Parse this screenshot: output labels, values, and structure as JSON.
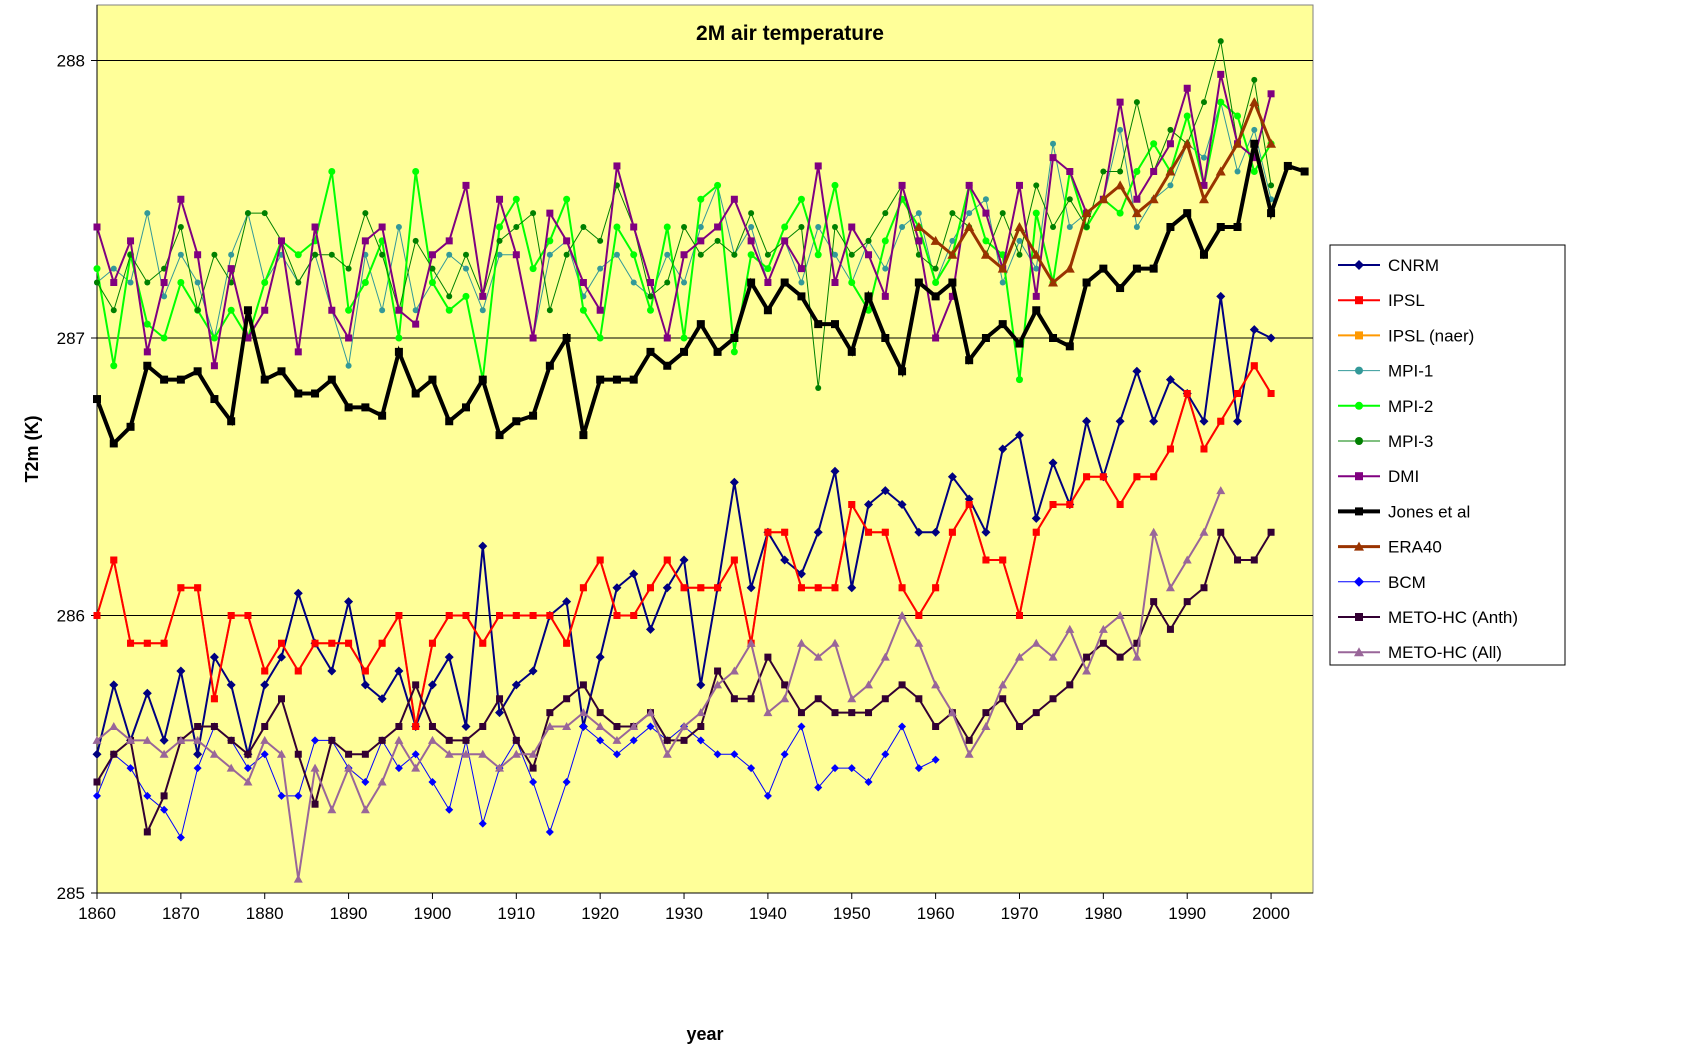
{
  "chart_data": {
    "type": "line",
    "title": "2M air temperature",
    "x_label": "year",
    "y_label": "T2m (K)",
    "xlim": [
      1860,
      2005
    ],
    "ylim": [
      285,
      288.2
    ],
    "xticks": [
      1860,
      1870,
      1880,
      1890,
      1900,
      1910,
      1920,
      1930,
      1940,
      1950,
      1960,
      1970,
      1980,
      1990,
      2000
    ],
    "yticks": [
      285,
      286,
      287,
      288
    ],
    "grid": true,
    "legend": "right",
    "background": "#ffff99",
    "x": [
      1860,
      1862,
      1864,
      1866,
      1868,
      1870,
      1872,
      1874,
      1876,
      1878,
      1880,
      1882,
      1884,
      1886,
      1888,
      1890,
      1892,
      1894,
      1896,
      1898,
      1900,
      1902,
      1904,
      1906,
      1908,
      1910,
      1912,
      1914,
      1916,
      1918,
      1920,
      1922,
      1924,
      1926,
      1928,
      1930,
      1932,
      1934,
      1936,
      1938,
      1940,
      1942,
      1944,
      1946,
      1948,
      1950,
      1952,
      1954,
      1956,
      1958,
      1960,
      1962,
      1964,
      1966,
      1968,
      1970,
      1972,
      1974,
      1976,
      1978,
      1980,
      1982,
      1984,
      1986,
      1988,
      1990,
      1992,
      1994,
      1996,
      1998,
      2000,
      2002,
      2004
    ],
    "series": [
      {
        "name": "CNRM",
        "color": "#000080",
        "marker": "diamond",
        "width": 2,
        "values": [
          285.5,
          285.75,
          285.55,
          285.72,
          285.55,
          285.8,
          285.5,
          285.85,
          285.75,
          285.5,
          285.75,
          285.85,
          286.08,
          285.9,
          285.8,
          286.05,
          285.75,
          285.7,
          285.8,
          285.6,
          285.75,
          285.85,
          285.6,
          286.25,
          285.65,
          285.75,
          285.8,
          286.0,
          286.05,
          285.6,
          285.85,
          286.1,
          286.15,
          285.95,
          286.1,
          286.2,
          285.75,
          286.1,
          286.48,
          286.1,
          286.3,
          286.2,
          286.15,
          286.3,
          286.52,
          286.1,
          286.4,
          286.45,
          286.4,
          286.3,
          286.3,
          286.5,
          286.42,
          286.3,
          286.6,
          286.65,
          286.35,
          286.55,
          286.4,
          286.7,
          286.5,
          286.7,
          286.88,
          286.7,
          286.85,
          286.8,
          286.7,
          287.15,
          286.7,
          287.03,
          287.0,
          null,
          null
        ]
      },
      {
        "name": "IPSL",
        "color": "#ff0000",
        "marker": "square",
        "width": 2,
        "values": [
          286.0,
          286.2,
          285.9,
          285.9,
          285.9,
          286.1,
          286.1,
          285.7,
          286.0,
          286.0,
          285.8,
          285.9,
          285.8,
          285.9,
          285.9,
          285.9,
          285.8,
          285.9,
          286.0,
          285.6,
          285.9,
          286.0,
          286.0,
          285.9,
          286.0,
          286.0,
          286.0,
          286.0,
          285.9,
          286.1,
          286.2,
          286.0,
          286.0,
          286.1,
          286.2,
          286.1,
          286.1,
          286.1,
          286.2,
          285.9,
          286.3,
          286.3,
          286.1,
          286.1,
          286.1,
          286.4,
          286.3,
          286.3,
          286.1,
          286.0,
          286.1,
          286.3,
          286.4,
          286.2,
          286.2,
          286.0,
          286.3,
          286.4,
          286.4,
          286.5,
          286.5,
          286.4,
          286.5,
          286.5,
          286.6,
          286.8,
          286.6,
          286.7,
          286.8,
          286.9,
          286.8,
          null,
          null
        ]
      },
      {
        "name": "IPSL (naer)",
        "color": "#ff9900",
        "marker": "square",
        "width": 2,
        "values": [
          286.0,
          286.2,
          285.9,
          285.9,
          285.9,
          286.1,
          286.1,
          285.7,
          286.0,
          286.0,
          285.8,
          285.9,
          285.8,
          285.9,
          285.9,
          285.9,
          285.8,
          285.9,
          286.0,
          285.6,
          285.9,
          286.0,
          286.0,
          285.9,
          286.0,
          286.0,
          286.0,
          286.0,
          285.9,
          286.1,
          286.2,
          286.0,
          286.0,
          286.1,
          286.2,
          286.1,
          286.1,
          286.1,
          286.2,
          285.9,
          286.3,
          286.3,
          286.1,
          286.1,
          286.1,
          286.4,
          286.3,
          286.3,
          286.1,
          286.0,
          286.1,
          286.3,
          286.4,
          286.2,
          286.2,
          286.0,
          286.3,
          286.4,
          286.4,
          286.5,
          286.5,
          286.4,
          286.5,
          286.5,
          286.6,
          286.8,
          286.6,
          286.7,
          286.8,
          286.9,
          286.8,
          null,
          null
        ]
      },
      {
        "name": "MPI-1",
        "color": "#339999",
        "marker": "circle",
        "width": 1,
        "values": [
          287.2,
          287.25,
          287.2,
          287.45,
          287.15,
          287.3,
          287.2,
          287.0,
          287.3,
          287.45,
          287.2,
          287.3,
          287.2,
          287.3,
          287.1,
          286.9,
          287.3,
          287.1,
          287.4,
          287.1,
          287.2,
          287.3,
          287.25,
          287.1,
          287.3,
          287.3,
          287.0,
          287.3,
          287.35,
          287.15,
          287.25,
          287.3,
          287.2,
          287.15,
          287.3,
          287.2,
          287.4,
          287.55,
          287.3,
          287.4,
          287.2,
          287.35,
          287.2,
          287.4,
          287.3,
          287.2,
          287.35,
          287.25,
          287.4,
          287.45,
          287.2,
          287.35,
          287.45,
          287.5,
          287.2,
          287.35,
          287.25,
          287.7,
          287.4,
          287.45,
          287.5,
          287.75,
          287.4,
          287.5,
          287.55,
          287.7,
          287.65,
          287.85,
          287.6,
          287.75,
          287.5,
          null,
          null
        ]
      },
      {
        "name": "MPI-2",
        "color": "#00ff00",
        "marker": "circle",
        "width": 2,
        "values": [
          287.25,
          286.9,
          287.3,
          287.05,
          287.0,
          287.2,
          287.1,
          287.0,
          287.1,
          287.0,
          287.2,
          287.35,
          287.3,
          287.35,
          287.6,
          287.1,
          287.2,
          287.35,
          287.0,
          287.6,
          287.2,
          287.1,
          287.15,
          286.85,
          287.4,
          287.5,
          287.25,
          287.35,
          287.5,
          287.1,
          287.0,
          287.4,
          287.3,
          287.1,
          287.4,
          287.0,
          287.5,
          287.55,
          286.95,
          287.3,
          287.25,
          287.4,
          287.5,
          287.3,
          287.55,
          287.2,
          287.1,
          287.35,
          287.5,
          287.4,
          287.2,
          287.3,
          287.55,
          287.35,
          287.3,
          286.85,
          287.45,
          287.2,
          287.6,
          287.4,
          287.5,
          287.45,
          287.6,
          287.7,
          287.6,
          287.8,
          287.55,
          287.85,
          287.8,
          287.6,
          287.7,
          null,
          null
        ]
      },
      {
        "name": "MPI-3",
        "color": "#008000",
        "marker": "circle",
        "width": 1,
        "values": [
          287.2,
          287.1,
          287.3,
          287.2,
          287.25,
          287.4,
          287.1,
          287.3,
          287.2,
          287.45,
          287.45,
          287.35,
          287.2,
          287.3,
          287.3,
          287.25,
          287.45,
          287.3,
          287.1,
          287.35,
          287.25,
          287.15,
          287.3,
          287.15,
          287.35,
          287.4,
          287.45,
          287.1,
          287.3,
          287.4,
          287.35,
          287.55,
          287.4,
          287.15,
          287.2,
          287.4,
          287.3,
          287.35,
          287.3,
          287.45,
          287.3,
          287.35,
          287.4,
          286.82,
          287.4,
          287.3,
          287.35,
          287.45,
          287.55,
          287.3,
          287.25,
          287.45,
          287.4,
          287.3,
          287.45,
          287.3,
          287.55,
          287.4,
          287.5,
          287.4,
          287.6,
          287.6,
          287.85,
          287.6,
          287.75,
          287.7,
          287.85,
          288.07,
          287.7,
          287.93,
          287.55,
          null,
          null
        ]
      },
      {
        "name": "DMI",
        "color": "#800080",
        "marker": "square",
        "width": 2,
        "values": [
          287.4,
          287.2,
          287.35,
          286.95,
          287.2,
          287.5,
          287.3,
          286.9,
          287.25,
          287.0,
          287.1,
          287.35,
          286.95,
          287.4,
          287.1,
          287.0,
          287.35,
          287.4,
          287.1,
          287.05,
          287.3,
          287.35,
          287.55,
          287.15,
          287.5,
          287.3,
          287.0,
          287.45,
          287.35,
          287.2,
          287.1,
          287.62,
          287.4,
          287.2,
          287.0,
          287.3,
          287.35,
          287.4,
          287.5,
          287.35,
          287.2,
          287.35,
          287.25,
          287.62,
          287.2,
          287.4,
          287.3,
          287.15,
          287.55,
          287.35,
          287.0,
          287.15,
          287.55,
          287.45,
          287.25,
          287.55,
          287.15,
          287.65,
          287.6,
          287.45,
          287.5,
          287.85,
          287.5,
          287.6,
          287.7,
          287.9,
          287.55,
          287.95,
          287.7,
          287.65,
          287.88,
          null,
          null
        ]
      },
      {
        "name": "Jones et al",
        "color": "#000000",
        "marker": "square",
        "width": 4,
        "values": [
          286.78,
          286.62,
          286.68,
          286.9,
          286.85,
          286.85,
          286.88,
          286.78,
          286.7,
          287.1,
          286.85,
          286.88,
          286.8,
          286.8,
          286.85,
          286.75,
          286.75,
          286.72,
          286.95,
          286.8,
          286.85,
          286.7,
          286.75,
          286.85,
          286.65,
          286.7,
          286.72,
          286.9,
          287.0,
          286.65,
          286.85,
          286.85,
          286.85,
          286.95,
          286.9,
          286.95,
          287.05,
          286.95,
          287.0,
          287.2,
          287.1,
          287.2,
          287.15,
          287.05,
          287.05,
          286.95,
          287.15,
          287.0,
          286.88,
          287.2,
          287.15,
          287.2,
          286.92,
          287.0,
          287.05,
          286.98,
          287.1,
          287.0,
          286.97,
          287.2,
          287.25,
          287.18,
          287.25,
          287.25,
          287.4,
          287.45,
          287.3,
          287.4,
          287.4,
          287.7,
          287.45,
          287.62,
          287.6
        ]
      },
      {
        "name": "ERA40",
        "color": "#993300",
        "marker": "triangle",
        "width": 3,
        "values": [
          null,
          null,
          null,
          null,
          null,
          null,
          null,
          null,
          null,
          null,
          null,
          null,
          null,
          null,
          null,
          null,
          null,
          null,
          null,
          null,
          null,
          null,
          null,
          null,
          null,
          null,
          null,
          null,
          null,
          null,
          null,
          null,
          null,
          null,
          null,
          null,
          null,
          null,
          null,
          null,
          null,
          null,
          null,
          null,
          null,
          null,
          null,
          null,
          null,
          287.4,
          287.35,
          287.3,
          287.4,
          287.3,
          287.25,
          287.4,
          287.3,
          287.2,
          287.25,
          287.45,
          287.5,
          287.55,
          287.45,
          287.5,
          287.6,
          287.7,
          287.5,
          287.6,
          287.7,
          287.85,
          287.7,
          null,
          null
        ]
      },
      {
        "name": "BCM",
        "color": "#0000ff",
        "marker": "diamond",
        "width": 1,
        "values": [
          285.35,
          285.5,
          285.45,
          285.35,
          285.3,
          285.2,
          285.45,
          285.6,
          285.55,
          285.45,
          285.5,
          285.35,
          285.35,
          285.55,
          285.55,
          285.45,
          285.4,
          285.55,
          285.45,
          285.5,
          285.4,
          285.3,
          285.55,
          285.25,
          285.45,
          285.55,
          285.4,
          285.22,
          285.4,
          285.6,
          285.55,
          285.5,
          285.55,
          285.6,
          285.55,
          285.6,
          285.55,
          285.5,
          285.5,
          285.45,
          285.35,
          285.5,
          285.6,
          285.38,
          285.45,
          285.45,
          285.4,
          285.5,
          285.6,
          285.45,
          285.48,
          null,
          null,
          null,
          null,
          null,
          null,
          null,
          null,
          null,
          null,
          null,
          null,
          null,
          null,
          null,
          null,
          null,
          null,
          null,
          null,
          null,
          null
        ]
      },
      {
        "name": "METO-HC (Anth)",
        "color": "#330033",
        "marker": "square",
        "width": 2,
        "values": [
          285.4,
          285.5,
          285.55,
          285.22,
          285.35,
          285.55,
          285.6,
          285.6,
          285.55,
          285.5,
          285.6,
          285.7,
          285.5,
          285.32,
          285.55,
          285.5,
          285.5,
          285.55,
          285.6,
          285.75,
          285.6,
          285.55,
          285.55,
          285.6,
          285.7,
          285.55,
          285.45,
          285.65,
          285.7,
          285.75,
          285.65,
          285.6,
          285.6,
          285.65,
          285.55,
          285.55,
          285.6,
          285.8,
          285.7,
          285.7,
          285.85,
          285.75,
          285.65,
          285.7,
          285.65,
          285.65,
          285.65,
          285.7,
          285.75,
          285.7,
          285.6,
          285.65,
          285.55,
          285.65,
          285.7,
          285.6,
          285.65,
          285.7,
          285.75,
          285.85,
          285.9,
          285.85,
          285.9,
          286.05,
          285.95,
          286.05,
          286.1,
          286.3,
          286.2,
          286.2,
          286.3,
          null,
          null
        ]
      },
      {
        "name": "METO-HC (All)",
        "color": "#996699",
        "marker": "triangle",
        "width": 2,
        "values": [
          285.55,
          285.6,
          285.55,
          285.55,
          285.5,
          285.55,
          285.55,
          285.5,
          285.45,
          285.4,
          285.55,
          285.5,
          285.05,
          285.45,
          285.3,
          285.45,
          285.3,
          285.4,
          285.55,
          285.45,
          285.55,
          285.5,
          285.5,
          285.5,
          285.45,
          285.5,
          285.5,
          285.6,
          285.6,
          285.65,
          285.6,
          285.55,
          285.6,
          285.65,
          285.5,
          285.6,
          285.65,
          285.75,
          285.8,
          285.9,
          285.65,
          285.7,
          285.9,
          285.85,
          285.9,
          285.7,
          285.75,
          285.85,
          286.0,
          285.9,
          285.75,
          285.65,
          285.5,
          285.6,
          285.75,
          285.85,
          285.9,
          285.85,
          285.95,
          285.8,
          285.95,
          286.0,
          285.85,
          286.3,
          286.1,
          286.2,
          286.3,
          286.45,
          null,
          null,
          null,
          null,
          null
        ]
      }
    ]
  }
}
